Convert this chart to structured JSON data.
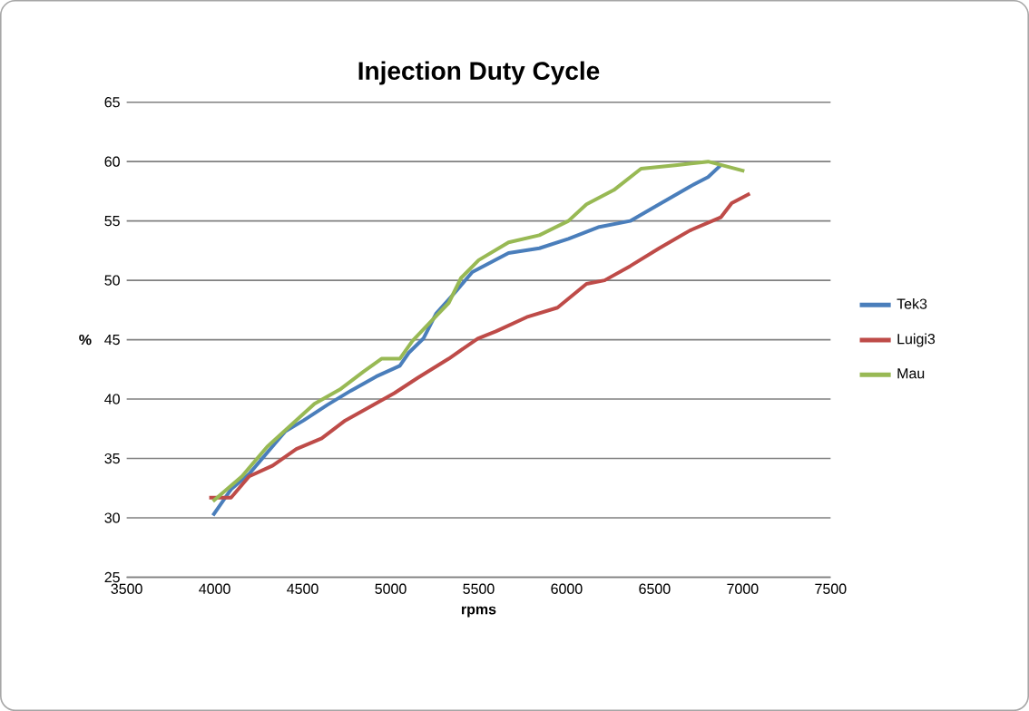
{
  "chart_data": {
    "type": "line",
    "title": "Injection Duty Cycle",
    "xlabel": "rpms",
    "ylabel": "%",
    "xlim": [
      3500,
      7500
    ],
    "xticks": [
      3500,
      4000,
      4500,
      5000,
      5500,
      6000,
      6500,
      7000,
      7500
    ],
    "ylim": [
      25,
      65
    ],
    "yticks": [
      25,
      30,
      35,
      40,
      45,
      50,
      55,
      60,
      65
    ],
    "grid": "y",
    "legend": "right",
    "marker": "none",
    "series": [
      {
        "name": "Tek3",
        "color": "#4a7ebb",
        "x": [
          3990,
          4093,
          4196,
          4299,
          4402,
          4505,
          4639,
          4773,
          4918,
          5052,
          5103,
          5186,
          5258,
          5361,
          5464,
          5670,
          5845,
          6010,
          6186,
          6361,
          6526,
          6701,
          6804,
          6876
        ],
        "values": [
          30.2,
          32.4,
          33.7,
          35.5,
          37.3,
          38.2,
          39.5,
          40.7,
          41.9,
          42.8,
          43.9,
          45.1,
          47.2,
          48.9,
          50.7,
          52.3,
          52.7,
          53.5,
          54.5,
          55.0,
          56.4,
          57.9,
          58.7,
          59.7
        ]
      },
      {
        "name": "Luigi3",
        "color": "#be4b48",
        "x": [
          3969,
          4093,
          4196,
          4330,
          4464,
          4608,
          4742,
          4876,
          5021,
          5155,
          5330,
          5495,
          5598,
          5773,
          5948,
          6113,
          6216,
          6361,
          6526,
          6701,
          6876,
          6938,
          7041
        ],
        "values": [
          31.7,
          31.7,
          33.5,
          34.4,
          35.8,
          36.7,
          38.2,
          39.3,
          40.5,
          41.8,
          43.4,
          45.1,
          45.7,
          46.9,
          47.7,
          49.7,
          50.0,
          51.2,
          52.7,
          54.2,
          55.3,
          56.5,
          57.3
        ]
      },
      {
        "name": "Mau",
        "color": "#98b954",
        "x": [
          3990,
          4155,
          4299,
          4433,
          4567,
          4711,
          4845,
          4948,
          5052,
          5124,
          5227,
          5330,
          5400,
          5500,
          5670,
          5845,
          6010,
          6113,
          6268,
          6423,
          6629,
          6804,
          7010
        ],
        "values": [
          31.4,
          33.5,
          36.0,
          37.8,
          39.6,
          40.8,
          42.3,
          43.4,
          43.4,
          44.9,
          46.5,
          48.1,
          50.2,
          51.7,
          53.2,
          53.8,
          55.0,
          56.4,
          57.6,
          59.4,
          59.7,
          60.0,
          59.2
        ]
      }
    ]
  }
}
